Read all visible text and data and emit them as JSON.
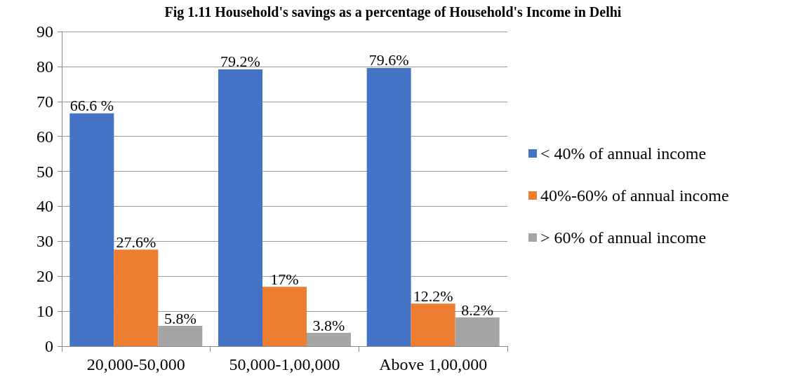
{
  "chart_data": {
    "type": "bar",
    "title": "Fig 1.11 Household's savings as a percentage of Household's Income in Delhi",
    "categories": [
      "20,000-50,000",
      "50,000-1,00,000",
      "Above 1,00,000"
    ],
    "series": [
      {
        "name": "< 40% of annual income",
        "color": "#4472c4",
        "values": [
          66.6,
          79.2,
          79.6
        ],
        "value_labels": [
          "66.6 %",
          "79.2%",
          "79.6%"
        ]
      },
      {
        "name": "40%-60% of annual income",
        "color": "#ed7d31",
        "values": [
          27.6,
          17,
          12.2
        ],
        "value_labels": [
          "27.6%",
          "17%",
          "12.2%"
        ]
      },
      {
        "name": "> 60% of annual income",
        "color": "#a5a5a5",
        "values": [
          5.8,
          3.8,
          8.2
        ],
        "value_labels": [
          "5.8%",
          "3.8%",
          "8.2%"
        ]
      }
    ],
    "ylim": [
      0,
      90
    ],
    "yticks": [
      0,
      10,
      20,
      30,
      40,
      50,
      60,
      70,
      80,
      90
    ],
    "grid": "y",
    "legend": "right"
  }
}
